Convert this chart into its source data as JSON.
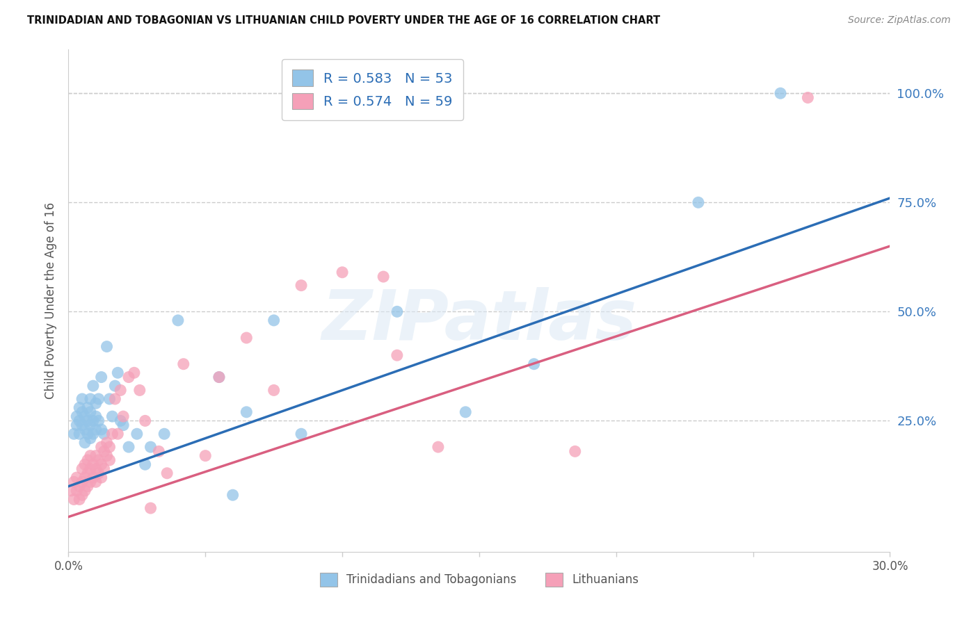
{
  "title": "TRINIDADIAN AND TOBAGONIAN VS LITHUANIAN CHILD POVERTY UNDER THE AGE OF 16 CORRELATION CHART",
  "source": "Source: ZipAtlas.com",
  "ylabel": "Child Poverty Under the Age of 16",
  "xlim": [
    0.0,
    0.3
  ],
  "ylim": [
    -0.05,
    1.1
  ],
  "xtick_values": [
    0.0,
    0.05,
    0.1,
    0.15,
    0.2,
    0.25,
    0.3
  ],
  "xtick_labels_show": {
    "0.0": "0.0%",
    "0.30": "30.0%"
  },
  "ytick_values": [
    0.25,
    0.5,
    0.75,
    1.0
  ],
  "ytick_labels": [
    "25.0%",
    "50.0%",
    "75.0%",
    "100.0%"
  ],
  "blue_scatter_color": "#93c4e8",
  "pink_scatter_color": "#f5a0b8",
  "blue_line_color": "#2b6db5",
  "pink_line_color": "#d95f80",
  "legend_line1": "R = 0.583   N = 53",
  "legend_line2": "R = 0.574   N = 59",
  "legend_label_blue": "Trinidadians and Tobagonians",
  "legend_label_pink": "Lithuanians",
  "right_tick_color": "#3a7abf",
  "grid_color": "#cccccc",
  "background_color": "#ffffff",
  "blue_x": [
    0.002,
    0.003,
    0.003,
    0.004,
    0.004,
    0.004,
    0.005,
    0.005,
    0.005,
    0.006,
    0.006,
    0.006,
    0.007,
    0.007,
    0.007,
    0.008,
    0.008,
    0.008,
    0.008,
    0.009,
    0.009,
    0.009,
    0.01,
    0.01,
    0.01,
    0.011,
    0.011,
    0.012,
    0.012,
    0.013,
    0.014,
    0.015,
    0.016,
    0.017,
    0.018,
    0.019,
    0.02,
    0.022,
    0.025,
    0.028,
    0.03,
    0.035,
    0.04,
    0.055,
    0.06,
    0.065,
    0.075,
    0.085,
    0.12,
    0.145,
    0.17,
    0.23,
    0.26
  ],
  "blue_y": [
    0.22,
    0.24,
    0.26,
    0.28,
    0.22,
    0.25,
    0.24,
    0.27,
    0.3,
    0.2,
    0.23,
    0.26,
    0.22,
    0.25,
    0.28,
    0.21,
    0.24,
    0.27,
    0.3,
    0.22,
    0.25,
    0.33,
    0.23,
    0.26,
    0.29,
    0.25,
    0.3,
    0.23,
    0.35,
    0.22,
    0.42,
    0.3,
    0.26,
    0.33,
    0.36,
    0.25,
    0.24,
    0.19,
    0.22,
    0.15,
    0.19,
    0.22,
    0.48,
    0.35,
    0.08,
    0.27,
    0.48,
    0.22,
    0.5,
    0.27,
    0.38,
    0.75,
    1.0
  ],
  "pink_x": [
    0.001,
    0.002,
    0.002,
    0.003,
    0.003,
    0.004,
    0.004,
    0.005,
    0.005,
    0.005,
    0.006,
    0.006,
    0.006,
    0.007,
    0.007,
    0.007,
    0.008,
    0.008,
    0.008,
    0.009,
    0.009,
    0.01,
    0.01,
    0.01,
    0.011,
    0.011,
    0.012,
    0.012,
    0.012,
    0.013,
    0.013,
    0.014,
    0.014,
    0.015,
    0.015,
    0.016,
    0.017,
    0.018,
    0.019,
    0.02,
    0.022,
    0.024,
    0.026,
    0.028,
    0.03,
    0.033,
    0.036,
    0.042,
    0.05,
    0.055,
    0.065,
    0.075,
    0.085,
    0.1,
    0.115,
    0.12,
    0.135,
    0.185,
    0.27
  ],
  "pink_y": [
    0.09,
    0.07,
    0.11,
    0.09,
    0.12,
    0.07,
    0.1,
    0.08,
    0.11,
    0.14,
    0.09,
    0.12,
    0.15,
    0.1,
    0.13,
    0.16,
    0.11,
    0.14,
    0.17,
    0.12,
    0.15,
    0.11,
    0.14,
    0.17,
    0.13,
    0.16,
    0.12,
    0.15,
    0.19,
    0.14,
    0.18,
    0.17,
    0.2,
    0.16,
    0.19,
    0.22,
    0.3,
    0.22,
    0.32,
    0.26,
    0.35,
    0.36,
    0.32,
    0.25,
    0.05,
    0.18,
    0.13,
    0.38,
    0.17,
    0.35,
    0.44,
    0.32,
    0.56,
    0.59,
    0.58,
    0.4,
    0.19,
    0.18,
    0.99
  ],
  "blue_line_x": [
    0.0,
    0.3
  ],
  "blue_line_y": [
    0.1,
    0.76
  ],
  "pink_line_x": [
    0.0,
    0.3
  ],
  "pink_line_y": [
    0.03,
    0.65
  ]
}
